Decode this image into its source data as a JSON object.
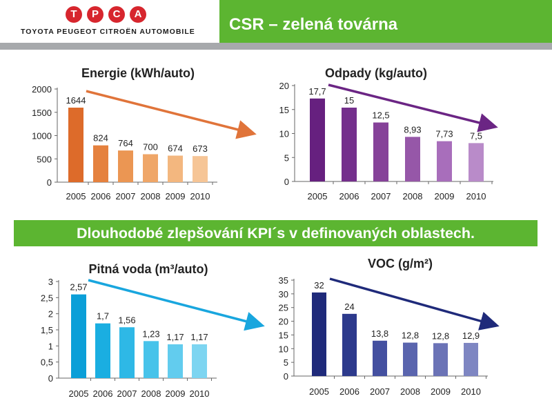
{
  "header": {
    "logo_letters": [
      "T",
      "P",
      "C",
      "A"
    ],
    "logo_tagline": "TOYOTA PEUGEOT CITROËN AUTOMOBILE",
    "title": "CSR – zelená továrna",
    "colors": {
      "title_bar": "#5cb531",
      "divider": "#a7a9ac",
      "logo_red": "#d7262e"
    }
  },
  "banner": {
    "text": "Dlouhodobé zlepšování KPI´s v definovaných oblastech."
  },
  "chart_data": [
    {
      "id": "energie",
      "type": "bar",
      "title": "Energie (kWh/auto)",
      "categories": [
        "2005",
        "2006",
        "2007",
        "2008",
        "2009",
        "2010"
      ],
      "values": [
        1644,
        824,
        764,
        700,
        674,
        673
      ],
      "bar_heights": [
        1600,
        790,
        680,
        600,
        570,
        560
      ],
      "value_labels": [
        "1644",
        "824",
        "764",
        "700",
        "674",
        "673"
      ],
      "ylim": [
        0,
        2000
      ],
      "yticks": [
        "0",
        "500",
        "1000",
        "1500",
        "2000"
      ],
      "ytick_values": [
        0,
        500,
        1000,
        1500,
        2000
      ],
      "colors": [
        "#dd6b2a",
        "#e5813e",
        "#eb9653",
        "#efa668",
        "#f3b77f",
        "#f6c596"
      ],
      "arrow_color": "#e0743a",
      "grid": false
    },
    {
      "id": "odpady",
      "type": "bar",
      "title": "Odpady (kg/auto)",
      "categories": [
        "2005",
        "2006",
        "2007",
        "2008",
        "2009",
        "2010"
      ],
      "values": [
        17.7,
        15,
        12.5,
        8.93,
        7.73,
        7.5
      ],
      "bar_heights": [
        17.3,
        15.4,
        12.3,
        9.3,
        8.4,
        8.0
      ],
      "value_labels": [
        "17,7",
        "15",
        "12,5",
        "8,93",
        "7,73",
        "7,5"
      ],
      "ylim": [
        0,
        20
      ],
      "yticks": [
        "0",
        "5",
        "10",
        "15",
        "20"
      ],
      "ytick_values": [
        0,
        5,
        10,
        15,
        20
      ],
      "colors": [
        "#66207f",
        "#742f8c",
        "#864299",
        "#9657a8",
        "#a86ebb",
        "#b98bc9"
      ],
      "arrow_color": "#6b2584",
      "grid": false
    },
    {
      "id": "voda",
      "type": "bar",
      "title": "Pitná voda (m³/auto)",
      "categories": [
        "2005",
        "2006",
        "2007",
        "2008",
        "2009",
        "2010"
      ],
      "values": [
        2.57,
        1.7,
        1.56,
        1.23,
        1.17,
        1.17
      ],
      "bar_heights": [
        2.6,
        1.7,
        1.58,
        1.15,
        1.05,
        1.05
      ],
      "value_labels": [
        "2,57",
        "1,7",
        "1,56",
        "1,23",
        "1,17",
        "1,17"
      ],
      "ylim": [
        0,
        3
      ],
      "yticks": [
        "0",
        "0,5",
        "1",
        "1,5",
        "2",
        "2,5",
        "3"
      ],
      "ytick_values": [
        0,
        0.5,
        1,
        1.5,
        2,
        2.5,
        3
      ],
      "colors": [
        "#0b9fd8",
        "#1aaee1",
        "#2eb8e6",
        "#47c3ea",
        "#62ccee",
        "#7dd5f1"
      ],
      "arrow_color": "#19a6de",
      "grid": false
    },
    {
      "id": "voc",
      "type": "bar",
      "title": "VOC (g/m²)",
      "categories": [
        "2005",
        "2006",
        "2007",
        "2008",
        "2009",
        "2010"
      ],
      "values": [
        32,
        24,
        13.8,
        12.8,
        12.8,
        12.9
      ],
      "bar_heights": [
        30.5,
        22.7,
        12.9,
        12.2,
        12.0,
        12.1
      ],
      "value_labels": [
        "32",
        "24",
        "13,8",
        "12,8",
        "12,8",
        "12,9"
      ],
      "ylim": [
        0,
        35
      ],
      "yticks": [
        "0",
        "5",
        "10",
        "15",
        "20",
        "25",
        "30",
        "35"
      ],
      "ytick_values": [
        0,
        5,
        10,
        15,
        20,
        25,
        30,
        35
      ],
      "colors": [
        "#1f2a7a",
        "#2d3a8c",
        "#4450a0",
        "#5a65ae",
        "#6b73b6",
        "#7e86c2"
      ],
      "arrow_color": "#1f2a7a",
      "grid": false
    }
  ]
}
